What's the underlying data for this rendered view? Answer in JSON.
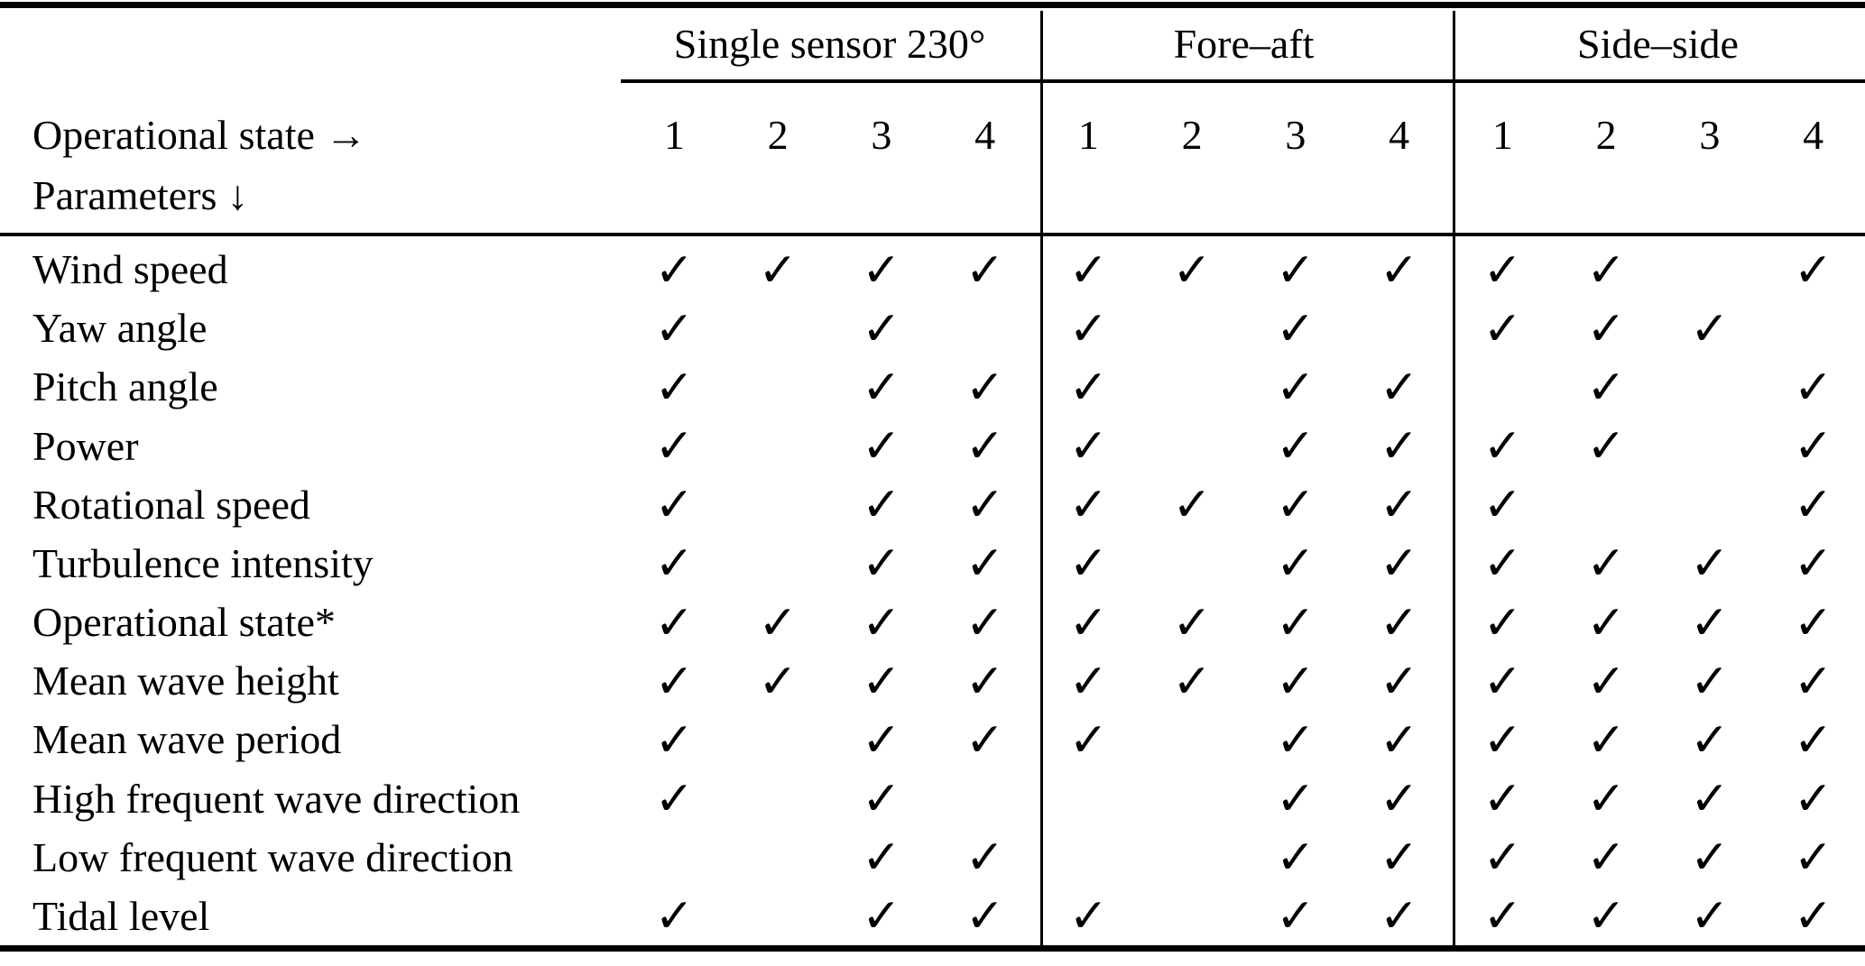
{
  "table": {
    "corner": {
      "line1": "Operational state →",
      "line2": "Parameters ↓"
    },
    "check_glyph": "✓",
    "groups": [
      {
        "label": "Single sensor 230°",
        "states": [
          "1",
          "2",
          "3",
          "4"
        ]
      },
      {
        "label": "Fore–aft",
        "states": [
          "1",
          "2",
          "3",
          "4"
        ]
      },
      {
        "label": "Side–side",
        "states": [
          "1",
          "2",
          "3",
          "4"
        ]
      }
    ],
    "rows": [
      {
        "label": "Wind speed",
        "checks": [
          [
            1,
            1,
            1,
            1
          ],
          [
            1,
            1,
            1,
            1
          ],
          [
            1,
            1,
            0,
            1
          ]
        ]
      },
      {
        "label": "Yaw angle",
        "checks": [
          [
            1,
            0,
            1,
            0
          ],
          [
            1,
            0,
            1,
            0
          ],
          [
            1,
            1,
            1,
            0
          ]
        ]
      },
      {
        "label": "Pitch angle",
        "checks": [
          [
            1,
            0,
            1,
            1
          ],
          [
            1,
            0,
            1,
            1
          ],
          [
            0,
            1,
            0,
            1
          ]
        ]
      },
      {
        "label": "Power",
        "checks": [
          [
            1,
            0,
            1,
            1
          ],
          [
            1,
            0,
            1,
            1
          ],
          [
            1,
            1,
            0,
            1
          ]
        ]
      },
      {
        "label": "Rotational speed",
        "checks": [
          [
            1,
            0,
            1,
            1
          ],
          [
            1,
            1,
            1,
            1
          ],
          [
            1,
            0,
            0,
            1
          ]
        ]
      },
      {
        "label": "Turbulence intensity",
        "checks": [
          [
            1,
            0,
            1,
            1
          ],
          [
            1,
            0,
            1,
            1
          ],
          [
            1,
            1,
            1,
            1
          ]
        ]
      },
      {
        "label": "Operational state*",
        "checks": [
          [
            1,
            1,
            1,
            1
          ],
          [
            1,
            1,
            1,
            1
          ],
          [
            1,
            1,
            1,
            1
          ]
        ]
      },
      {
        "label": "Mean wave height",
        "checks": [
          [
            1,
            1,
            1,
            1
          ],
          [
            1,
            1,
            1,
            1
          ],
          [
            1,
            1,
            1,
            1
          ]
        ]
      },
      {
        "label": "Mean wave period",
        "checks": [
          [
            1,
            0,
            1,
            1
          ],
          [
            1,
            0,
            1,
            1
          ],
          [
            1,
            1,
            1,
            1
          ]
        ]
      },
      {
        "label": "High frequent wave direction",
        "checks": [
          [
            1,
            0,
            1,
            0
          ],
          [
            0,
            0,
            1,
            1
          ],
          [
            1,
            1,
            1,
            1
          ]
        ]
      },
      {
        "label": "Low frequent wave direction",
        "checks": [
          [
            0,
            0,
            1,
            1
          ],
          [
            0,
            0,
            1,
            1
          ],
          [
            1,
            1,
            1,
            1
          ]
        ]
      },
      {
        "label": "Tidal level",
        "checks": [
          [
            1,
            0,
            1,
            1
          ],
          [
            1,
            0,
            1,
            1
          ],
          [
            1,
            1,
            1,
            1
          ]
        ]
      }
    ],
    "colors": {
      "text": "#000000",
      "background": "#ffffff",
      "rule": "#000000"
    }
  }
}
